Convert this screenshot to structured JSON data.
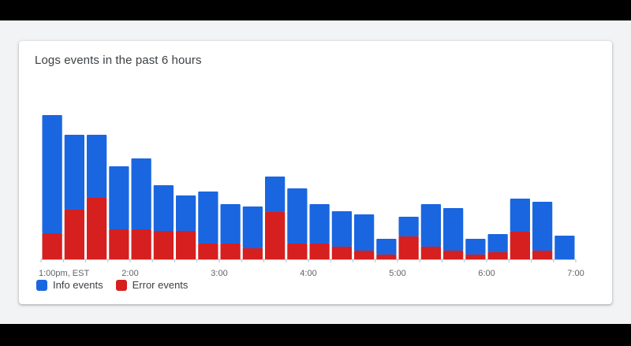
{
  "card": {
    "title": "Logs events in the past 6 hours"
  },
  "colors": {
    "info": "#1a66e0",
    "error": "#d61f1f",
    "axis": "#bdc1c6",
    "tick_label": "#5f6368"
  },
  "chart_data": {
    "type": "bar",
    "stacked": true,
    "title": "Logs events in the past 6 hours",
    "x_tick_labels": [
      "1:00pm, EST",
      "2:00",
      "3:00",
      "4:00",
      "5:00",
      "6:00",
      "7:00"
    ],
    "bars_per_hour": 4,
    "ylim": [
      0,
      185
    ],
    "grid": false,
    "legend_position": "bottom-left",
    "series": [
      {
        "name": "Info events",
        "color": "#1a66e0",
        "values": [
          150,
          95,
          80,
          80,
          90,
          58,
          45,
          66,
          50,
          53,
          45,
          70,
          50,
          45,
          46,
          20,
          25,
          54,
          54,
          20,
          23,
          42,
          62,
          30
        ]
      },
      {
        "name": "Error events",
        "color": "#d61f1f",
        "values": [
          33,
          63,
          78,
          38,
          38,
          36,
          36,
          20,
          20,
          14,
          60,
          20,
          20,
          16,
          11,
          6,
          29,
          16,
          11,
          6,
          9,
          35,
          11,
          0
        ]
      }
    ]
  }
}
